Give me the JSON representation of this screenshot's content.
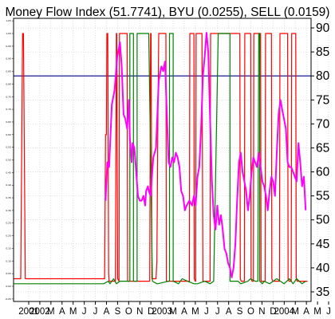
{
  "chart_data": {
    "type": "line",
    "title": "Money Flow Index (51.7741), BYU (0.0255), SELL (0.0159)",
    "xlabel": "",
    "ylabel": "",
    "grid": true,
    "x_tick_labels": [
      "2001",
      "2002",
      "M",
      "A",
      "M",
      "J",
      "J",
      "A",
      "S",
      "O",
      "N",
      "D",
      "2003",
      "M",
      "A",
      "M",
      "J",
      "J",
      "A",
      "S",
      "O",
      "N",
      "D",
      "2004",
      "M",
      "A",
      "M",
      "J"
    ],
    "y_right": {
      "range": [
        33,
        92
      ],
      "ticks": [
        35,
        40,
        45,
        50,
        55,
        60,
        65,
        70,
        75,
        80,
        85,
        90
      ]
    },
    "y_left": {
      "range": [
        -0.06,
        1.06
      ],
      "ticks": [
        "1.05",
        "1.00",
        "0.95",
        "0.90",
        "0.85",
        "0.80",
        "0.75",
        "0.70",
        "0.65",
        "0.60",
        "0.55",
        "0.50",
        "0.45",
        "0.40",
        "0.35",
        "0.30",
        "0.25",
        "0.20",
        "0.15",
        "0.10",
        "0.05",
        "0.00",
        "-0.05"
      ]
    },
    "reference_line": {
      "value": 80,
      "color": "#000080"
    },
    "colors": {
      "mfi": "#ff00ff",
      "sell": "#ff0000",
      "buy": "#008000",
      "grid": "#c8c8c8",
      "reference": "#000080"
    },
    "series": [
      {
        "name": "Money Flow Index",
        "axis": "right",
        "x": [
          2002.02,
          2002.04,
          2002.06,
          2002.09,
          2002.12,
          2002.15,
          2002.18,
          2002.2,
          2002.22,
          2002.24,
          2002.26,
          2002.28,
          2002.29,
          2002.31,
          2002.32,
          2002.34,
          2002.36,
          2002.38,
          2002.4,
          2002.42,
          2002.44,
          2002.46,
          2002.47,
          2002.49,
          2002.5,
          2002.52,
          2002.55,
          2002.58,
          2002.61,
          2002.64,
          2002.66,
          2002.68,
          2002.7,
          2002.72,
          2002.74,
          2002.76,
          2002.78,
          2002.8,
          2002.82,
          2002.84,
          2002.86,
          2002.88,
          2002.9,
          2002.92,
          2002.95,
          2002.98,
          2003.0,
          2003.02,
          2003.04,
          2003.06,
          2003.08,
          2003.1,
          2003.12,
          2003.14,
          2003.16,
          2003.18,
          2003.2,
          2003.22,
          2003.24,
          2003.26,
          2003.28,
          2003.3,
          2003.32,
          2003.34,
          2003.36,
          2003.38,
          2003.4,
          2003.42,
          2003.44,
          2003.46,
          2003.48,
          2003.5,
          2003.52,
          2003.54,
          2003.56,
          2003.58,
          2003.6,
          2003.62,
          2003.64,
          2003.66,
          2003.68,
          2003.7,
          2003.72,
          2003.74,
          2003.76,
          2003.78,
          2003.8,
          2003.82,
          2003.84,
          2003.86,
          2003.88,
          2003.9,
          2003.92,
          2003.94,
          2003.96,
          2003.98,
          2004.0,
          2004.02,
          2004.04,
          2004.06,
          2004.08,
          2004.1,
          2004.12,
          2004.14,
          2004.16,
          2004.18,
          2004.2,
          2004.22,
          2004.24
        ],
        "values": [
          54,
          62,
          61,
          74,
          77,
          84,
          87,
          82,
          72,
          71,
          69,
          75,
          67,
          62,
          66,
          65,
          60,
          55,
          54,
          54,
          55,
          53,
          56,
          57,
          56,
          55,
          63,
          65,
          79,
          82,
          81,
          83,
          72,
          62,
          61,
          63,
          62,
          64,
          63,
          61,
          56,
          55,
          52,
          53,
          54,
          53,
          55,
          53,
          59,
          61,
          69,
          80,
          84,
          89,
          85,
          71,
          58,
          51,
          48,
          53,
          49,
          51,
          48,
          44,
          43,
          41,
          40,
          38,
          40,
          45,
          54,
          62,
          64,
          60,
          58,
          56,
          52,
          55,
          60,
          63,
          62,
          61,
          64,
          61,
          58,
          57,
          55,
          52,
          56,
          59,
          58,
          55,
          64,
          72,
          75,
          73,
          71,
          69,
          62,
          61,
          61,
          60,
          59,
          58,
          66,
          62,
          57,
          59,
          52
        ]
      },
      {
        "name": "SELL",
        "axis": "left",
        "x": [
          2001.0,
          2001.08,
          2001.1,
          2001.11,
          2001.13,
          2001.14,
          2002.01,
          2002.02,
          2002.03,
          2002.035,
          2002.045,
          2002.055,
          2002.06,
          2002.13,
          2002.14,
          2002.145,
          2002.155,
          2002.17,
          2002.175,
          2002.185,
          2002.26,
          2002.265,
          2002.275,
          2002.51,
          2002.52,
          2002.525,
          2002.535,
          2002.58,
          2002.59,
          2002.6,
          2002.61,
          2002.615,
          2002.69,
          2002.695,
          2002.705,
          2002.95,
          2002.955,
          2002.965,
          2002.98,
          2003.0,
          2003.005,
          2003.015,
          2003.02,
          2003.025,
          2003.035,
          2003.09,
          2003.1,
          2003.105,
          2003.115,
          2003.18,
          2003.185,
          2003.195,
          2003.51,
          2003.515,
          2003.525,
          2003.56,
          2003.565,
          2003.575,
          2003.63,
          2003.635,
          2003.645,
          2003.66,
          2003.665,
          2003.675,
          2003.73,
          2003.74,
          2003.745,
          2003.755,
          2003.79,
          2003.795,
          2003.805,
          2003.86,
          2003.865,
          2003.875,
          2003.95,
          2003.955,
          2003.965,
          2004.04,
          2004.045,
          2004.055,
          2004.08,
          2004.085,
          2004.095,
          2004.13,
          2004.135,
          2004.145,
          2004.26
        ],
        "values": [
          0.03,
          0.03,
          1.0,
          1.0,
          0.03,
          0.03,
          0.03,
          0.6,
          0.6,
          1.0,
          1.0,
          0.05,
          0.02,
          0.02,
          1.0,
          1.0,
          0.03,
          0.02,
          1.0,
          1.0,
          1.0,
          0.02,
          0.02,
          0.02,
          1.0,
          1.0,
          0.03,
          0.03,
          0.1,
          0.6,
          1.0,
          1.0,
          1.0,
          0.02,
          0.02,
          0.02,
          1.0,
          1.0,
          1.0,
          1.0,
          0.03,
          0.02,
          0.02,
          1.0,
          1.0,
          1.0,
          0.02,
          0.02,
          0.02,
          0.02,
          1.0,
          1.0,
          1.0,
          0.03,
          0.02,
          0.02,
          1.0,
          1.0,
          1.0,
          0.03,
          0.02,
          0.02,
          1.0,
          1.0,
          1.0,
          1.0,
          0.02,
          0.02,
          0.02,
          1.0,
          1.0,
          1.0,
          0.03,
          0.02,
          0.02,
          1.0,
          1.0,
          1.0,
          0.03,
          0.02,
          0.02,
          1.0,
          1.0,
          1.0,
          0.03,
          0.02,
          0.02
        ]
      },
      {
        "name": "BYU",
        "axis": "left",
        "x": [
          2001.0,
          2001.12,
          2002.0,
          2002.05,
          2002.07,
          2002.11,
          2002.14,
          2002.18,
          2002.24,
          2002.29,
          2002.29,
          2002.33,
          2002.33,
          2002.37,
          2002.37,
          2002.43,
          2002.5,
          2002.54,
          2002.59,
          2002.6,
          2002.72,
          2002.73,
          2002.73,
          2002.77,
          2002.77,
          2002.83,
          2002.87,
          2002.93,
          2003.0,
          2003.04,
          2003.12,
          2003.18,
          2003.22,
          2003.22,
          2003.27,
          2003.32,
          2003.38,
          2003.4,
          2003.4,
          2003.44,
          2003.49,
          2003.52,
          2003.6,
          2003.63,
          2003.68,
          2003.71,
          2003.72,
          2003.73,
          2003.73,
          2003.76,
          2003.78,
          2003.84,
          2003.92,
          2004.0,
          2004.06,
          2004.1,
          2004.14,
          2004.2,
          2004.24
        ],
        "values": [
          0.01,
          0.01,
          0.01,
          0.02,
          0.01,
          0.03,
          0.01,
          0.02,
          0.02,
          0.02,
          1.0,
          1.0,
          0.02,
          0.02,
          1.0,
          1.0,
          1.0,
          0.02,
          0.01,
          0.01,
          0.02,
          0.02,
          1.0,
          1.0,
          0.02,
          0.01,
          0.03,
          0.02,
          0.01,
          0.01,
          0.02,
          0.01,
          0.02,
          0.02,
          1.0,
          1.0,
          1.0,
          1.0,
          0.02,
          0.02,
          0.02,
          0.01,
          0.02,
          0.03,
          0.02,
          0.02,
          1.0,
          1.0,
          0.02,
          0.01,
          0.02,
          0.01,
          0.03,
          0.01,
          0.03,
          0.01,
          0.03,
          0.01,
          0.02
        ]
      }
    ]
  }
}
